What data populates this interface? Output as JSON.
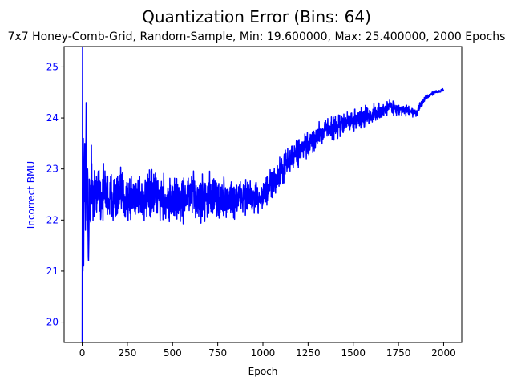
{
  "chart_data": {
    "type": "line",
    "title": "Quantization Error (Bins: 64)",
    "subtitle": "7x7 Honey-Comb-Grid, Random-Sample, Min: 19.600000, Max: 25.400000, 2000 Epochs",
    "xlabel": "Epoch",
    "ylabel": "Incorrect BMU",
    "xlim": [
      -100,
      2100
    ],
    "ylim": [
      19.6,
      25.4
    ],
    "xticks": [
      0,
      250,
      500,
      750,
      1000,
      1250,
      1500,
      1750,
      2000
    ],
    "yticks": [
      20,
      21,
      22,
      23,
      24,
      25
    ],
    "grid": false,
    "series": [
      {
        "color": "#0000ff",
        "anchors": {
          "x": [
            0,
            2,
            4,
            6,
            8,
            10,
            14,
            18,
            22,
            26,
            30,
            35,
            40,
            45,
            50,
            60,
            70,
            80,
            90,
            100,
            125,
            150,
            175,
            200,
            225,
            250,
            300,
            350,
            400,
            450,
            500,
            550,
            600,
            650,
            700,
            750,
            800,
            850,
            900,
            950,
            1000,
            1025,
            1050,
            1100,
            1150,
            1200,
            1250,
            1300,
            1350,
            1400,
            1450,
            1500,
            1550,
            1600,
            1650,
            1700,
            1750,
            1800,
            1850,
            1900,
            1950,
            2000
          ],
          "y": [
            19.6,
            25.4,
            21.0,
            23.6,
            21.1,
            22.6,
            23.5,
            21.8,
            24.3,
            22.0,
            23.0,
            21.2,
            22.6,
            22.0,
            23.1,
            22.2,
            22.8,
            22.3,
            22.9,
            22.4,
            22.6,
            22.4,
            22.5,
            22.4,
            22.5,
            22.4,
            22.5,
            22.4,
            22.5,
            22.4,
            22.4,
            22.4,
            22.5,
            22.4,
            22.5,
            22.4,
            22.4,
            22.4,
            22.5,
            22.4,
            22.5,
            22.55,
            22.7,
            22.95,
            23.2,
            23.35,
            23.45,
            23.65,
            23.8,
            23.8,
            23.9,
            23.95,
            24.0,
            24.05,
            24.1,
            24.25,
            24.15,
            24.15,
            24.1,
            24.4,
            24.5,
            24.55
          ]
        },
        "spread": {
          "x": [
            0,
            100,
            250,
            500,
            750,
            1000,
            1200,
            1400,
            1600,
            1750,
            1850,
            1900,
            2000
          ],
          "y": [
            0.6,
            0.6,
            0.55,
            0.5,
            0.5,
            0.38,
            0.3,
            0.25,
            0.22,
            0.12,
            0.1,
            0.05,
            0.03
          ]
        },
        "count": 2001
      }
    ]
  }
}
